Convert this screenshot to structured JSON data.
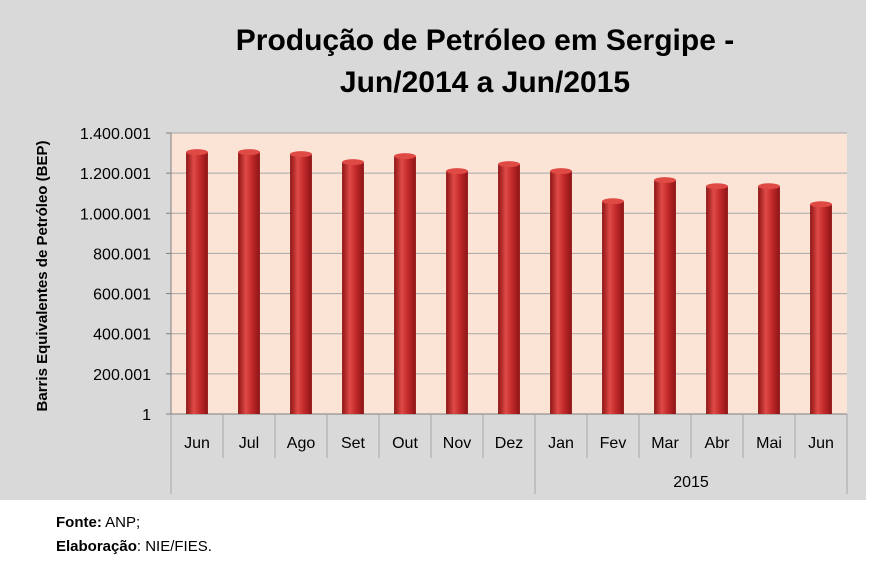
{
  "chart_data": {
    "type": "bar",
    "title_lines": [
      "Produção de Petróleo em Sergipe -",
      "Jun/2014 a Jun/2015"
    ],
    "xlabel": "",
    "ylabel": "Barris Equivalentes de Petróleo (BEP)",
    "categories": [
      "Jun",
      "Jul",
      "Ago",
      "Set",
      "Out",
      "Nov",
      "Dez",
      "Jan",
      "Fev",
      "Mar",
      "Abr",
      "Mai",
      "Jun"
    ],
    "year_group_label": "2015",
    "values": [
      1305000,
      1305000,
      1295000,
      1255000,
      1285000,
      1210000,
      1245000,
      1210000,
      1060000,
      1165000,
      1135000,
      1135000,
      1045000
    ],
    "ylim": [
      1,
      1400001
    ],
    "yticks": [
      1,
      200001,
      400001,
      600001,
      800001,
      1000001,
      1200001,
      1400001
    ],
    "ytick_labels": [
      "1",
      "200.001",
      "400.001",
      "600.001",
      "800.001",
      "1.000.001",
      "1.200.001",
      "1.400.001"
    ],
    "grid": true,
    "colors": {
      "bar": "#c0282a",
      "bar_light": "#e04a45",
      "bar_dark": "#8c1416",
      "plot_bg": "#fbe4d5",
      "grid": "#a6a6a6",
      "outer_bg": "#d9d9d9"
    }
  },
  "footer": {
    "source_label": "Fonte:",
    "source_value": " ANP;",
    "credit_label": "Elaboração",
    "credit_value": ": NIE/FIES."
  }
}
